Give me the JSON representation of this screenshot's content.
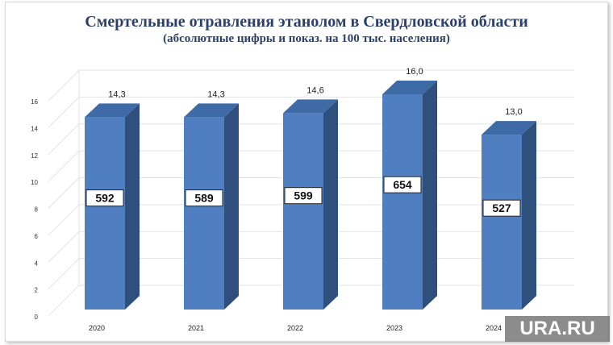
{
  "title": "Смертельные отравления этанолом в  Свердловской области",
  "subtitle": "(абсолютные цифры и показ. на 100 тыс. населения)",
  "watermark": "URA.RU",
  "colors": {
    "bar_front": "#4f7fc1",
    "bar_side": "#2f4f7d",
    "bar_top": "#3e6aa5",
    "title": "#2a3f6b"
  },
  "chart_data": {
    "type": "bar",
    "categories": [
      "2020",
      "2021",
      "2022",
      "2023",
      "2024"
    ],
    "values": [
      14.3,
      14.3,
      14.6,
      16.0,
      13.0
    ],
    "value_labels": [
      "14,3",
      "14,3",
      "14,6",
      "16,0",
      "13,0"
    ],
    "absolute_values": [
      "592",
      "589",
      "599",
      "654",
      "527"
    ],
    "y_ticks": [
      "0",
      "2",
      "4",
      "6",
      "8",
      "10",
      "12",
      "14",
      "16"
    ],
    "ylim": [
      0,
      16
    ],
    "grid": true,
    "legend": "none"
  }
}
